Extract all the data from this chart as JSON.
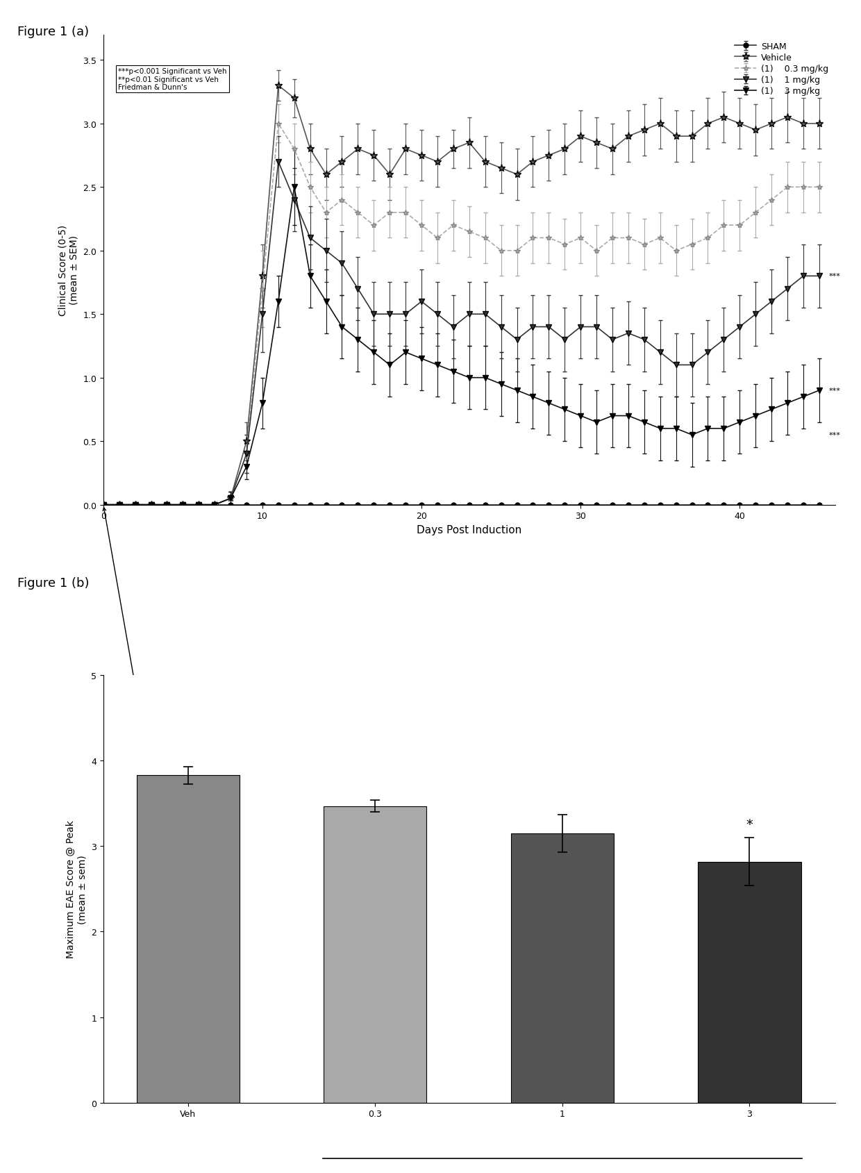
{
  "fig1a_title": "Figure 1 (a)",
  "fig1b_title": "Figure 1 (b)",
  "sham_x": [
    0,
    1,
    2,
    3,
    4,
    5,
    6,
    7,
    8,
    9,
    10,
    11,
    12,
    13,
    14,
    15,
    16,
    17,
    18,
    19,
    20,
    21,
    22,
    23,
    24,
    25,
    26,
    27,
    28,
    29,
    30,
    31,
    32,
    33,
    34,
    35,
    36,
    37,
    38,
    39,
    40,
    41,
    42,
    43,
    44,
    45
  ],
  "sham_y": [
    0,
    0,
    0,
    0,
    0,
    0,
    0,
    0,
    0,
    0,
    0,
    0,
    0,
    0,
    0,
    0,
    0,
    0,
    0,
    0,
    0,
    0,
    0,
    0,
    0,
    0,
    0,
    0,
    0,
    0,
    0,
    0,
    0,
    0,
    0,
    0,
    0,
    0,
    0,
    0,
    0,
    0,
    0,
    0,
    0,
    0
  ],
  "sham_err": [
    0,
    0,
    0,
    0,
    0,
    0,
    0,
    0,
    0,
    0,
    0,
    0,
    0,
    0,
    0,
    0,
    0,
    0,
    0,
    0,
    0,
    0,
    0,
    0,
    0,
    0,
    0,
    0,
    0,
    0,
    0,
    0,
    0,
    0,
    0,
    0,
    0,
    0,
    0,
    0,
    0,
    0,
    0,
    0,
    0,
    0
  ],
  "veh_x": [
    0,
    1,
    2,
    3,
    4,
    5,
    6,
    7,
    8,
    9,
    10,
    11,
    12,
    13,
    14,
    15,
    16,
    17,
    18,
    19,
    20,
    21,
    22,
    23,
    24,
    25,
    26,
    27,
    28,
    29,
    30,
    31,
    32,
    33,
    34,
    35,
    36,
    37,
    38,
    39,
    40,
    41,
    42,
    43,
    44,
    45
  ],
  "veh_y": [
    0,
    0,
    0,
    0,
    0,
    0,
    0,
    0,
    0.05,
    0.5,
    1.8,
    3.3,
    3.2,
    2.8,
    2.6,
    2.7,
    2.8,
    2.75,
    2.6,
    2.8,
    2.75,
    2.7,
    2.8,
    2.85,
    2.7,
    2.65,
    2.6,
    2.7,
    2.75,
    2.8,
    2.9,
    2.85,
    2.8,
    2.9,
    2.95,
    3.0,
    2.9,
    2.9,
    3.0,
    3.05,
    3.0,
    2.95,
    3.0,
    3.05,
    3.0,
    3.0
  ],
  "veh_err": [
    0,
    0,
    0,
    0,
    0,
    0,
    0,
    0,
    0.05,
    0.15,
    0.25,
    0.12,
    0.15,
    0.2,
    0.2,
    0.2,
    0.2,
    0.2,
    0.2,
    0.2,
    0.2,
    0.2,
    0.15,
    0.2,
    0.2,
    0.2,
    0.2,
    0.2,
    0.2,
    0.2,
    0.2,
    0.2,
    0.2,
    0.2,
    0.2,
    0.2,
    0.2,
    0.2,
    0.2,
    0.2,
    0.2,
    0.2,
    0.2,
    0.2,
    0.2,
    0.2
  ],
  "dose03_x": [
    0,
    1,
    2,
    3,
    4,
    5,
    6,
    7,
    8,
    9,
    10,
    11,
    12,
    13,
    14,
    15,
    16,
    17,
    18,
    19,
    20,
    21,
    22,
    23,
    24,
    25,
    26,
    27,
    28,
    29,
    30,
    31,
    32,
    33,
    34,
    35,
    36,
    37,
    38,
    39,
    40,
    41,
    42,
    43,
    44,
    45
  ],
  "dose03_y": [
    0,
    0,
    0,
    0,
    0,
    0,
    0,
    0,
    0.05,
    0.4,
    1.7,
    3.0,
    2.8,
    2.5,
    2.3,
    2.4,
    2.3,
    2.2,
    2.3,
    2.3,
    2.2,
    2.1,
    2.2,
    2.15,
    2.1,
    2.0,
    2.0,
    2.1,
    2.1,
    2.05,
    2.1,
    2.0,
    2.1,
    2.1,
    2.05,
    2.1,
    2.0,
    2.05,
    2.1,
    2.2,
    2.2,
    2.3,
    2.4,
    2.5,
    2.5,
    2.5
  ],
  "dose03_err": [
    0,
    0,
    0,
    0,
    0,
    0,
    0,
    0,
    0.05,
    0.15,
    0.3,
    0.15,
    0.2,
    0.2,
    0.2,
    0.2,
    0.2,
    0.2,
    0.2,
    0.2,
    0.2,
    0.2,
    0.2,
    0.2,
    0.2,
    0.2,
    0.2,
    0.2,
    0.2,
    0.2,
    0.2,
    0.2,
    0.2,
    0.2,
    0.2,
    0.2,
    0.2,
    0.2,
    0.2,
    0.2,
    0.2,
    0.2,
    0.2,
    0.2,
    0.2,
    0.2
  ],
  "dose1_x": [
    0,
    1,
    2,
    3,
    4,
    5,
    6,
    7,
    8,
    9,
    10,
    11,
    12,
    13,
    14,
    15,
    16,
    17,
    18,
    19,
    20,
    21,
    22,
    23,
    24,
    25,
    26,
    27,
    28,
    29,
    30,
    31,
    32,
    33,
    34,
    35,
    36,
    37,
    38,
    39,
    40,
    41,
    42,
    43,
    44,
    45
  ],
  "dose1_y": [
    0,
    0,
    0,
    0,
    0,
    0,
    0,
    0,
    0.05,
    0.4,
    1.5,
    2.7,
    2.4,
    2.1,
    2.0,
    1.9,
    1.7,
    1.5,
    1.5,
    1.5,
    1.6,
    1.5,
    1.4,
    1.5,
    1.5,
    1.4,
    1.3,
    1.4,
    1.4,
    1.3,
    1.4,
    1.4,
    1.3,
    1.35,
    1.3,
    1.2,
    1.1,
    1.1,
    1.2,
    1.3,
    1.4,
    1.5,
    1.6,
    1.7,
    1.8,
    1.8
  ],
  "dose1_err": [
    0,
    0,
    0,
    0,
    0,
    0,
    0,
    0,
    0.05,
    0.15,
    0.3,
    0.2,
    0.25,
    0.25,
    0.25,
    0.25,
    0.25,
    0.25,
    0.25,
    0.25,
    0.25,
    0.25,
    0.25,
    0.25,
    0.25,
    0.25,
    0.25,
    0.25,
    0.25,
    0.25,
    0.25,
    0.25,
    0.25,
    0.25,
    0.25,
    0.25,
    0.25,
    0.25,
    0.25,
    0.25,
    0.25,
    0.25,
    0.25,
    0.25,
    0.25,
    0.25
  ],
  "dose3_x": [
    0,
    1,
    2,
    3,
    4,
    5,
    6,
    7,
    8,
    9,
    10,
    11,
    12,
    13,
    14,
    15,
    16,
    17,
    18,
    19,
    20,
    21,
    22,
    23,
    24,
    25,
    26,
    27,
    28,
    29,
    30,
    31,
    32,
    33,
    34,
    35,
    36,
    37,
    38,
    39,
    40,
    41,
    42,
    43,
    44,
    45
  ],
  "dose3_y": [
    0,
    0,
    0,
    0,
    0,
    0,
    0,
    0,
    0.05,
    0.3,
    0.8,
    1.6,
    2.5,
    1.8,
    1.6,
    1.4,
    1.3,
    1.2,
    1.1,
    1.2,
    1.15,
    1.1,
    1.05,
    1.0,
    1.0,
    0.95,
    0.9,
    0.85,
    0.8,
    0.75,
    0.7,
    0.65,
    0.7,
    0.7,
    0.65,
    0.6,
    0.6,
    0.55,
    0.6,
    0.6,
    0.65,
    0.7,
    0.75,
    0.8,
    0.85,
    0.9
  ],
  "dose3_err": [
    0,
    0,
    0,
    0,
    0,
    0,
    0,
    0,
    0.05,
    0.1,
    0.2,
    0.2,
    0.3,
    0.25,
    0.25,
    0.25,
    0.25,
    0.25,
    0.25,
    0.25,
    0.25,
    0.25,
    0.25,
    0.25,
    0.25,
    0.25,
    0.25,
    0.25,
    0.25,
    0.25,
    0.25,
    0.25,
    0.25,
    0.25,
    0.25,
    0.25,
    0.25,
    0.25,
    0.25,
    0.25,
    0.25,
    0.25,
    0.25,
    0.25,
    0.25,
    0.25
  ],
  "sham_color": "#333333",
  "veh_color": "#555555",
  "dose03_color": "#aaaaaa",
  "dose1_color": "#333333",
  "dose3_color": "#111111",
  "annotation_box_text": "***p<0.001 Significant vs Veh\n**p<0.01 Significant vs Veh\nFriedman & Dunn's",
  "bar_categories": [
    "Veh",
    "0.3",
    "1",
    "3"
  ],
  "bar_values": [
    3.83,
    3.47,
    3.15,
    2.82
  ],
  "bar_errors": [
    0.1,
    0.07,
    0.22,
    0.28
  ],
  "bar_colors": [
    "#888888",
    "#aaaaaa",
    "#555555",
    "#333333"
  ],
  "xlabel_a": "Days Post Induction",
  "ylabel_a": "Clinical Score (0-5)\n(mean ± SEM)",
  "ylim_a": [
    0,
    3.7
  ],
  "xlim_a": [
    0,
    46
  ],
  "xticks_a": [
    0,
    10,
    20,
    30,
    40
  ],
  "yticks_a": [
    0.0,
    0.5,
    1.0,
    1.5,
    2.0,
    2.5,
    3.0,
    3.5
  ],
  "ylabel_b": "Maximum EAE Score @ Peak\n(mean ± sem)",
  "ylim_b": [
    0,
    5
  ],
  "yticks_b": [
    0,
    1,
    2,
    3,
    4,
    5
  ]
}
